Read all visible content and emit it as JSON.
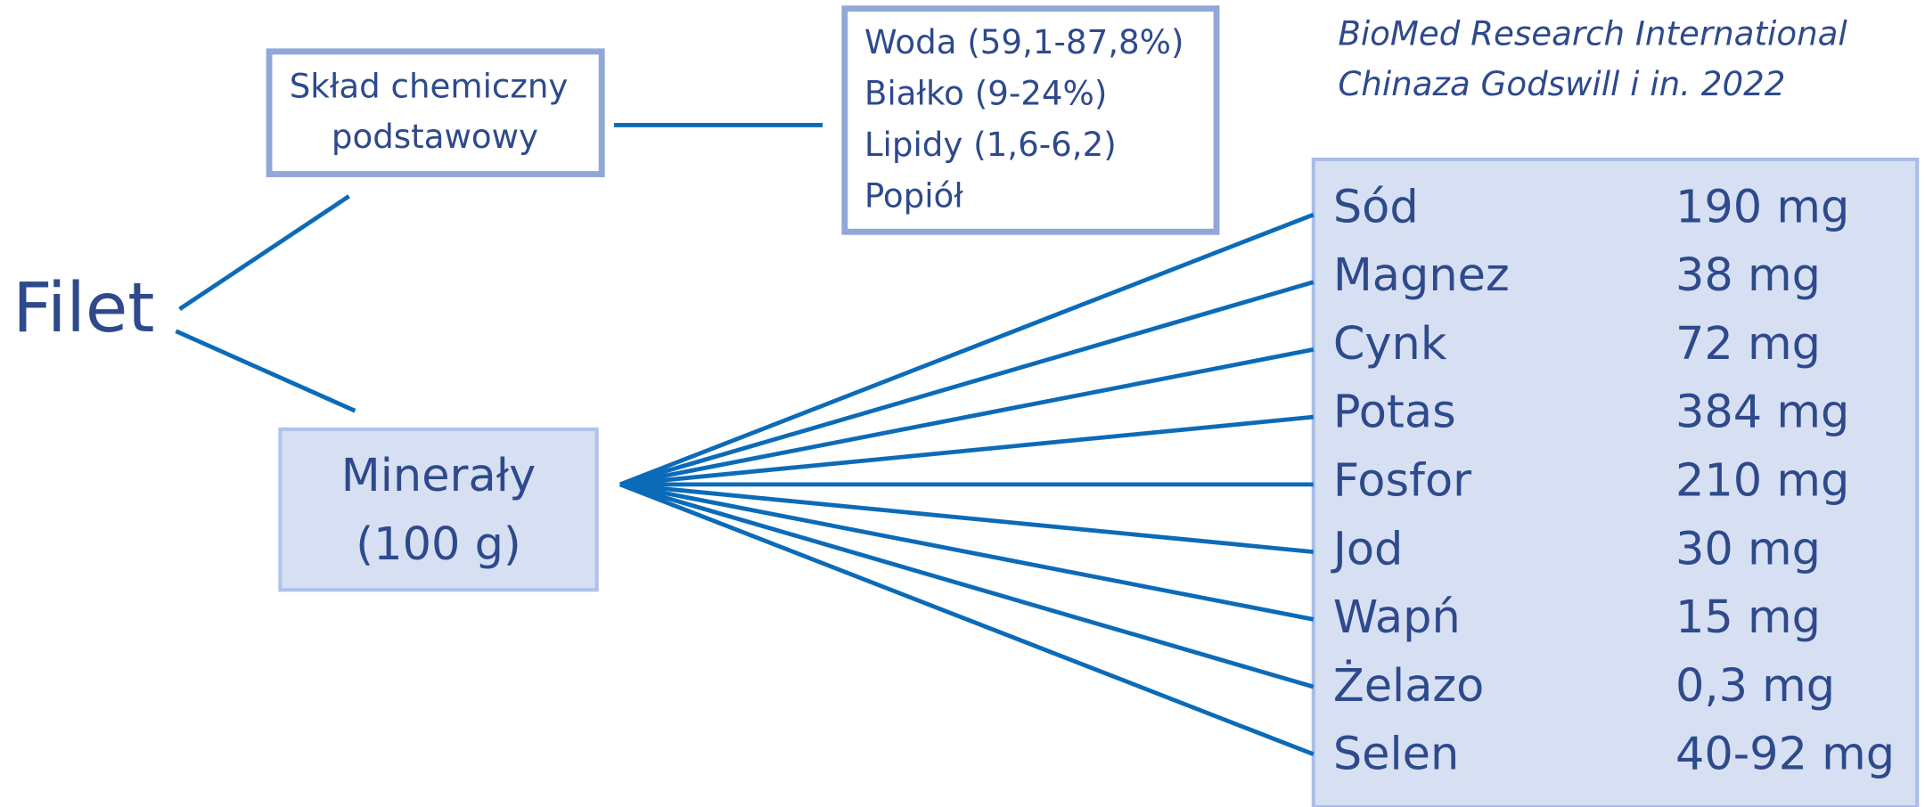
{
  "root": "Filet",
  "citation": [
    "BioMed Research International",
    "Chinaza Godswill i in. 2022"
  ],
  "composition": {
    "title": [
      "Skład chemiczny",
      "podstawowy"
    ],
    "items": [
      "Woda (59,1-87,8%)",
      "Białko (9-24%)",
      "Lipidy (1,6-6,2)",
      "Popiół"
    ]
  },
  "minerals": {
    "title": [
      "Minerały",
      "(100 g)"
    ],
    "rows": [
      [
        "Sód",
        "190 mg"
      ],
      [
        "Magnez",
        "38 mg"
      ],
      [
        "Cynk",
        "72 mg"
      ],
      [
        "Potas",
        "384 mg"
      ],
      [
        "Fosfor",
        "210 mg"
      ],
      [
        "Jod",
        "30 mg"
      ],
      [
        "Wapń",
        "15 mg"
      ],
      [
        "Żelazo",
        "0,3 mg"
      ],
      [
        "Selen",
        "40-92 mg"
      ]
    ]
  }
}
